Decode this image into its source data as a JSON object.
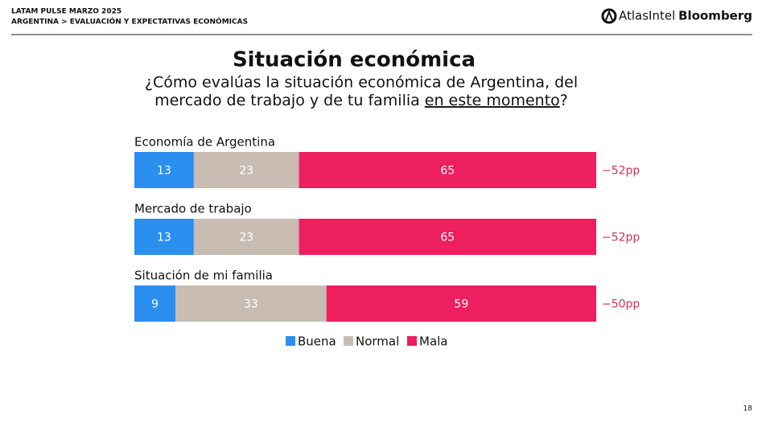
{
  "header": {
    "line1": "LATAM PULSE MARZO 2025",
    "line2": "ARGENTINA > EVALUACIÓN Y EXPECTATIVAS ECONÓMICAS",
    "logo1": "AtlasIntel",
    "logo2": "Bloomberg"
  },
  "page_number": "18",
  "chart_data": {
    "type": "stacked_bar_horizontal",
    "title": "Situación económica",
    "subtitle": {
      "line1": "¿Cómo evalúas la situación económica de Argentina, del",
      "line2": "mercado de trabajo y de tu familia",
      "emphasis": "en este momento",
      "end": "?"
    },
    "categories": [
      "Economía de Argentina",
      "Mercado de trabajo",
      "Situación de mi familia"
    ],
    "series": [
      {
        "name": "Buena",
        "color": "#2b8ff0",
        "values": [
          13,
          13,
          9
        ]
      },
      {
        "name": "Normal",
        "color": "#c8bcb3",
        "values": [
          23,
          23,
          33
        ]
      },
      {
        "name": "Mala",
        "color": "#ee1f5f",
        "values": [
          65,
          65,
          59
        ]
      }
    ],
    "net_labels": [
      "−52pp",
      "−52pp",
      "−50pp"
    ],
    "xlim": [
      0,
      101
    ]
  }
}
